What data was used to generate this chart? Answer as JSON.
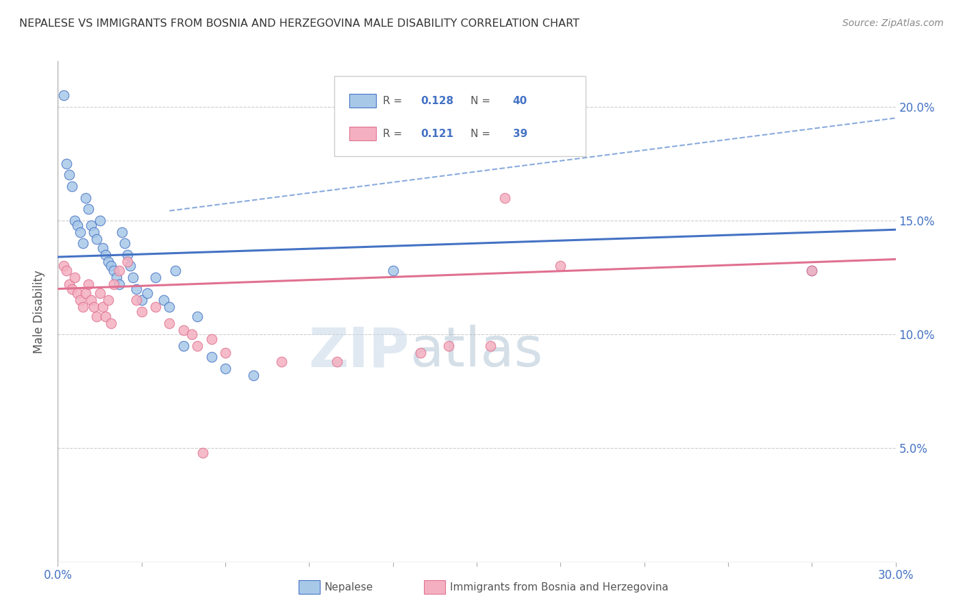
{
  "title": "NEPALESE VS IMMIGRANTS FROM BOSNIA AND HERZEGOVINA MALE DISABILITY CORRELATION CHART",
  "source": "Source: ZipAtlas.com",
  "ylabel": "Male Disability",
  "xlim": [
    0.0,
    0.3
  ],
  "ylim": [
    0.0,
    0.22
  ],
  "xtick_positions": [
    0.0,
    0.03,
    0.06,
    0.09,
    0.12,
    0.15,
    0.18,
    0.21,
    0.24,
    0.27,
    0.3
  ],
  "xtick_labels_show": {
    "0.0": "0.0%",
    "0.30": "30.0%"
  },
  "ytick_vals": [
    0.05,
    0.1,
    0.15,
    0.2
  ],
  "ytick_labels_right": [
    "5.0%",
    "10.0%",
    "15.0%",
    "20.0%"
  ],
  "blue_R": "0.128",
  "blue_N": "40",
  "pink_R": "0.121",
  "pink_N": "39",
  "legend_label_blue": "Nepalese",
  "legend_label_pink": "Immigrants from Bosnia and Herzegovina",
  "watermark_zip": "ZIP",
  "watermark_atlas": "atlas",
  "blue_color": "#a8c8e8",
  "blue_line_color": "#4472c4",
  "pink_color": "#f4b0c0",
  "pink_line_color": "#e07090",
  "background_color": "#ffffff",
  "grid_color": "#cccccc",
  "blue_scatter_x": [
    0.002,
    0.003,
    0.004,
    0.005,
    0.006,
    0.007,
    0.008,
    0.009,
    0.01,
    0.011,
    0.012,
    0.013,
    0.014,
    0.015,
    0.016,
    0.017,
    0.018,
    0.019,
    0.02,
    0.021,
    0.022,
    0.023,
    0.024,
    0.025,
    0.026,
    0.027,
    0.028,
    0.03,
    0.032,
    0.035,
    0.038,
    0.04,
    0.042,
    0.045,
    0.05,
    0.055,
    0.06,
    0.07,
    0.12,
    0.27
  ],
  "blue_scatter_y": [
    0.205,
    0.175,
    0.17,
    0.165,
    0.15,
    0.148,
    0.145,
    0.14,
    0.16,
    0.155,
    0.148,
    0.145,
    0.142,
    0.15,
    0.138,
    0.135,
    0.132,
    0.13,
    0.128,
    0.125,
    0.122,
    0.145,
    0.14,
    0.135,
    0.13,
    0.125,
    0.12,
    0.115,
    0.118,
    0.125,
    0.115,
    0.112,
    0.128,
    0.095,
    0.108,
    0.09,
    0.085,
    0.082,
    0.128,
    0.128
  ],
  "pink_scatter_x": [
    0.002,
    0.003,
    0.004,
    0.005,
    0.006,
    0.007,
    0.008,
    0.009,
    0.01,
    0.011,
    0.012,
    0.013,
    0.014,
    0.015,
    0.016,
    0.017,
    0.018,
    0.019,
    0.02,
    0.022,
    0.025,
    0.028,
    0.03,
    0.035,
    0.04,
    0.045,
    0.05,
    0.055,
    0.06,
    0.08,
    0.1,
    0.14,
    0.16,
    0.18,
    0.155,
    0.13,
    0.27,
    0.048,
    0.052
  ],
  "pink_scatter_y": [
    0.13,
    0.128,
    0.122,
    0.12,
    0.125,
    0.118,
    0.115,
    0.112,
    0.118,
    0.122,
    0.115,
    0.112,
    0.108,
    0.118,
    0.112,
    0.108,
    0.115,
    0.105,
    0.122,
    0.128,
    0.132,
    0.115,
    0.11,
    0.112,
    0.105,
    0.102,
    0.095,
    0.098,
    0.092,
    0.088,
    0.088,
    0.095,
    0.16,
    0.13,
    0.095,
    0.092,
    0.128,
    0.1,
    0.048
  ]
}
